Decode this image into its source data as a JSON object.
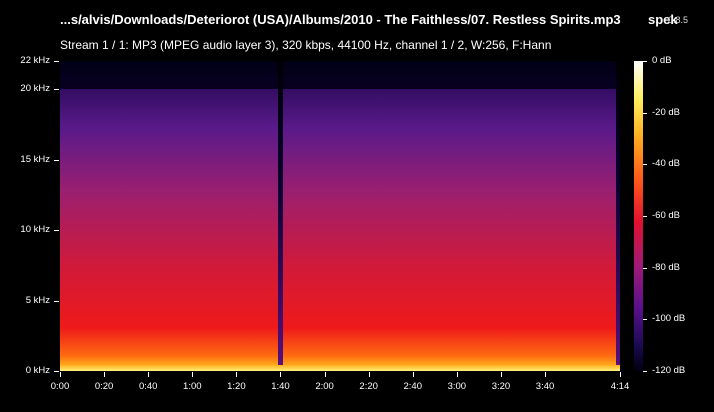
{
  "header": {
    "title": "...s/alvis/Downloads/Deteriorot (USA)/Albums/2010 - The Faithless/07. Restless Spirits.mp3",
    "brand": "spek",
    "version": "0.8.5",
    "stream_info": "Stream 1 / 1: MP3 (MPEG audio layer 3), 320 kbps, 44100 Hz, channel 1 / 2, W:256, F:Hann"
  },
  "y_axis": {
    "labels": [
      "22 kHz",
      "20 kHz",
      "15 kHz",
      "10 kHz",
      "5 kHz",
      "0 kHz"
    ],
    "values_khz": [
      22,
      20,
      15,
      10,
      5,
      0
    ],
    "range_khz": [
      0,
      22
    ]
  },
  "x_axis": {
    "labels": [
      "0:00",
      "0:20",
      "0:40",
      "1:00",
      "1:20",
      "1:40",
      "2:00",
      "2:20",
      "2:40",
      "3:00",
      "3:20",
      "3:40",
      "4:14"
    ],
    "values_sec": [
      0,
      20,
      40,
      60,
      80,
      100,
      120,
      140,
      160,
      180,
      200,
      220,
      254
    ],
    "range_sec": [
      0,
      254
    ]
  },
  "colorbar": {
    "labels": [
      "0 dB",
      "-20 dB",
      "-40 dB",
      "-60 dB",
      "-80 dB",
      "-100 dB",
      "-120 dB"
    ],
    "values_db": [
      0,
      -20,
      -40,
      -60,
      -80,
      -100,
      -120
    ],
    "range_db": [
      -120,
      0
    ]
  },
  "spectrogram": {
    "cutoff_khz": 20,
    "gaps": [
      {
        "start_sec": 99,
        "end_sec": 101,
        "top_khz": 22
      },
      {
        "start_sec": 252,
        "end_sec": 254,
        "top_khz": 22
      }
    ]
  }
}
